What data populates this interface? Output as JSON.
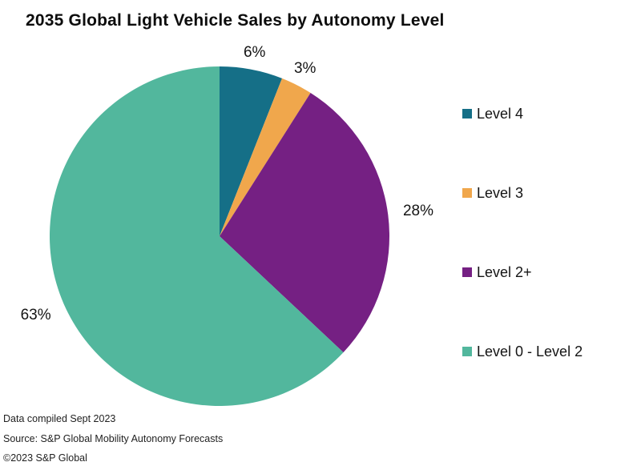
{
  "title": "2035 Global Light Vehicle Sales by Autonomy Level",
  "chart_data": {
    "type": "pie",
    "title": "2035 Global Light Vehicle Sales by Autonomy Level",
    "start_angle_deg": 0,
    "direction": "clockwise",
    "legend_position": "right",
    "series": [
      {
        "label": "Level 4",
        "value": 6,
        "pct_label": "6%",
        "color": "#156f87"
      },
      {
        "label": "Level 3",
        "value": 3,
        "pct_label": "3%",
        "color": "#f0a74c"
      },
      {
        "label": "Level 2+",
        "value": 28,
        "pct_label": "28%",
        "color": "#752083"
      },
      {
        "label": "Level 0 - Level 2",
        "value": 63,
        "pct_label": "63%",
        "color": "#52b79d"
      }
    ]
  },
  "footer": {
    "compiled": "Data compiled Sept 2023",
    "source": "Source: S&P Global Mobility Autonomy Forecasts",
    "copyright": "©2023 S&P Global"
  }
}
